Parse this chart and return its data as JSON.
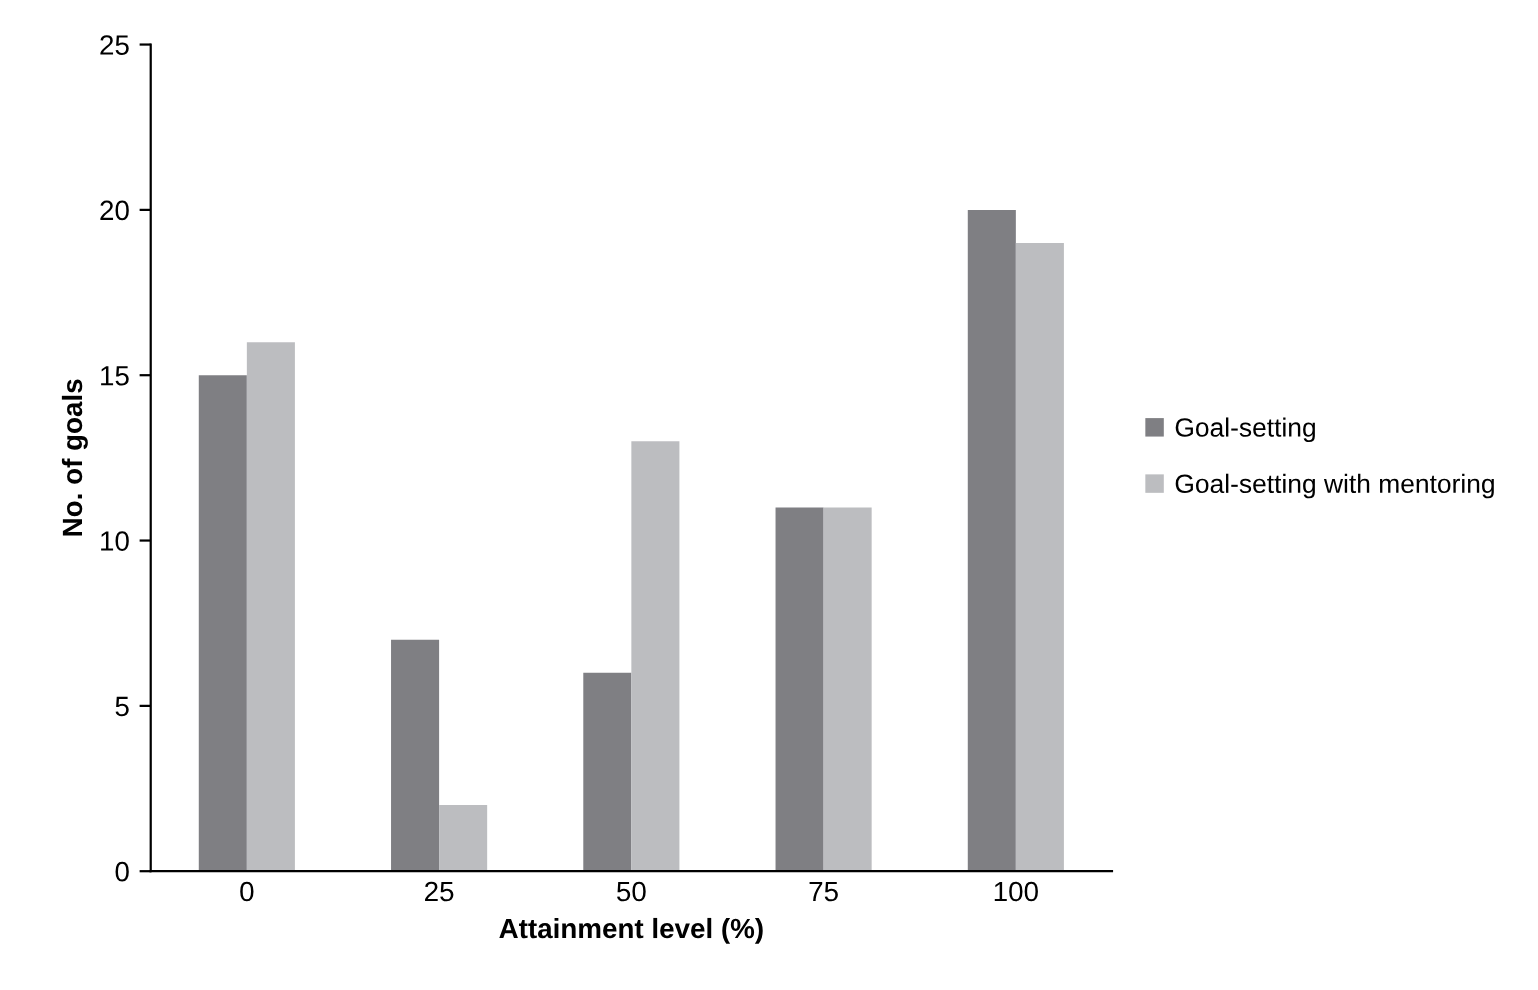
{
  "chart_data": {
    "type": "bar",
    "xlabel": "Attainment level (%)",
    "ylabel": "No. of goals",
    "categories": [
      "0",
      "25",
      "50",
      "75",
      "100"
    ],
    "series": [
      {
        "name": "Goal-setting",
        "color": "#7f7f83",
        "values": [
          15,
          7,
          6,
          11,
          20
        ]
      },
      {
        "name": "Goal-setting with mentoring",
        "color": "#bcbdc0",
        "values": [
          16,
          2,
          13,
          11,
          19
        ]
      }
    ],
    "ylim": [
      0,
      25
    ],
    "yticks": [
      0,
      5,
      10,
      15,
      20,
      25
    ],
    "grid": false,
    "legend": "right"
  }
}
